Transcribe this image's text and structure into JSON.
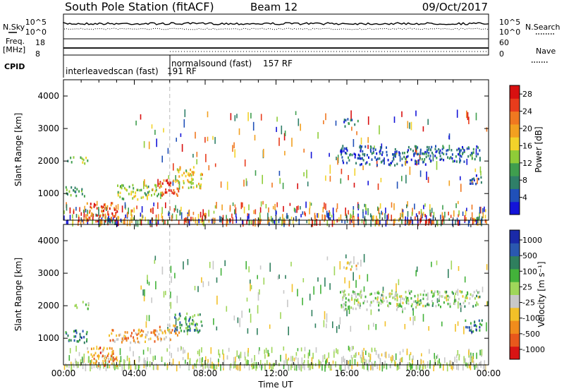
{
  "header": {
    "station": "South Pole Station (fitACF)",
    "beam": "Beam 12",
    "date": "09/Oct/2017"
  },
  "summary": {
    "left_labels": {
      "nsky": "N.Sky",
      "freq_line1": "Freq.",
      "freq_line2": "[MHz]",
      "cpid": "CPID"
    },
    "right_labels": {
      "nsearch": "N.Search",
      "nave": "Nave"
    },
    "nsky_ticks": [
      "10^5",
      "10^0"
    ],
    "nsearch_ticks": [
      "10^5",
      "10^0"
    ],
    "freq_ticks": [
      "18",
      "8"
    ],
    "nave_ticks": [
      "60",
      "0"
    ],
    "modes": [
      {
        "label": "interleavedscan (fast)",
        "rf": "191 RF",
        "start_hour": 0
      },
      {
        "label": "normalsound (fast)",
        "rf": "157 RF",
        "start_hour": 6
      }
    ]
  },
  "colors": {
    "power_scale": [
      "#1414d8",
      "#2050b8",
      "#2f7f68",
      "#3f9e4e",
      "#8fcc38",
      "#f2d22a",
      "#f2a020",
      "#f07820",
      "#e83c1c",
      "#d81010"
    ],
    "velocity_scale": [
      "#1a2aa8",
      "#2a58b0",
      "#2f7f5e",
      "#43b23a",
      "#9fd65a",
      "#c8c8c8",
      "#f2c028",
      "#f08c1c",
      "#e8581c",
      "#d81414"
    ]
  },
  "chart_data": [
    {
      "type": "heatmap",
      "name": "power",
      "xlabel": "",
      "ylabel": "Slant Range [km]",
      "xlim_hours": [
        0,
        24
      ],
      "ylim_km": [
        180,
        4500
      ],
      "yticks": [
        "1000",
        "2000",
        "3000",
        "4000"
      ],
      "colorbar": {
        "label": "Power [dB]",
        "ticks": [
          "4",
          "8",
          "12",
          "16",
          "20",
          "24",
          "28"
        ],
        "range": [
          0,
          30
        ]
      },
      "regions": [
        {
          "t0": 0.1,
          "t1": 1.2,
          "r0": 950,
          "r1": 1250,
          "level": 0.3
        },
        {
          "t0": 0.2,
          "t1": 0.6,
          "r0": 2000,
          "r1": 2200,
          "level": 0.4
        },
        {
          "t0": 0.9,
          "t1": 1.4,
          "r0": 1900,
          "r1": 2150,
          "level": 0.5
        },
        {
          "t0": 1.3,
          "t1": 3.0,
          "r0": 180,
          "r1": 750,
          "level": 0.8
        },
        {
          "t0": 3.0,
          "t1": 5.5,
          "r0": 850,
          "r1": 1300,
          "level": 0.45
        },
        {
          "t0": 5.3,
          "t1": 6.5,
          "r0": 950,
          "r1": 1450,
          "level": 0.82
        },
        {
          "t0": 6.3,
          "t1": 7.8,
          "r0": 1200,
          "r1": 1850,
          "level": 0.55
        },
        {
          "t0": 15.6,
          "t1": 20.5,
          "r0": 1900,
          "r1": 2500,
          "level": 0.18
        },
        {
          "t0": 20.5,
          "t1": 23.5,
          "r0": 2000,
          "r1": 2500,
          "level": 0.2
        },
        {
          "t0": 22.8,
          "t1": 23.6,
          "r0": 1300,
          "r1": 1600,
          "level": 0.15
        },
        {
          "t0": 15.8,
          "t1": 16.6,
          "r0": 3100,
          "r1": 3350,
          "level": 0.22
        }
      ]
    },
    {
      "type": "heatmap",
      "name": "velocity",
      "xlabel": "Time UT",
      "ylabel": "Slant Range [km]",
      "xlim_hours": [
        0,
        24
      ],
      "ylim_km": [
        180,
        4500
      ],
      "xticks": [
        "00:00",
        "04:00",
        "08:00",
        "12:00",
        "16:00",
        "20:00",
        "00:00"
      ],
      "yticks": [
        "1000",
        "2000",
        "3000",
        "4000"
      ],
      "colorbar": {
        "label": "Velocity [m s⁻¹]",
        "ticks": [
          "1000",
          "500",
          "100",
          "25",
          "-25",
          "-100",
          "-500",
          "-1000"
        ]
      },
      "regions": [
        {
          "t0": 0.1,
          "t1": 1.3,
          "r0": 900,
          "r1": 1300,
          "level": 0.78
        },
        {
          "t0": 0.6,
          "t1": 1.4,
          "r0": 1900,
          "r1": 2150,
          "level": 0.55
        },
        {
          "t0": 1.3,
          "t1": 3.0,
          "r0": 180,
          "r1": 750,
          "level": 0.25
        },
        {
          "t0": 2.5,
          "t1": 5.5,
          "r0": 900,
          "r1": 1300,
          "level": 0.3
        },
        {
          "t0": 5.3,
          "t1": 6.5,
          "r0": 950,
          "r1": 1450,
          "level": 0.35
        },
        {
          "t0": 6.2,
          "t1": 7.8,
          "r0": 1200,
          "r1": 1850,
          "level": 0.72
        },
        {
          "t0": 15.6,
          "t1": 20.5,
          "r0": 1900,
          "r1": 2500,
          "level": 0.55
        },
        {
          "t0": 20.5,
          "t1": 23.5,
          "r0": 2000,
          "r1": 2500,
          "level": 0.55
        },
        {
          "t0": 22.6,
          "t1": 23.6,
          "r0": 1200,
          "r1": 1600,
          "level": 0.78
        },
        {
          "t0": 15.8,
          "t1": 16.6,
          "r0": 3100,
          "r1": 3400,
          "level": 0.42
        }
      ]
    }
  ]
}
